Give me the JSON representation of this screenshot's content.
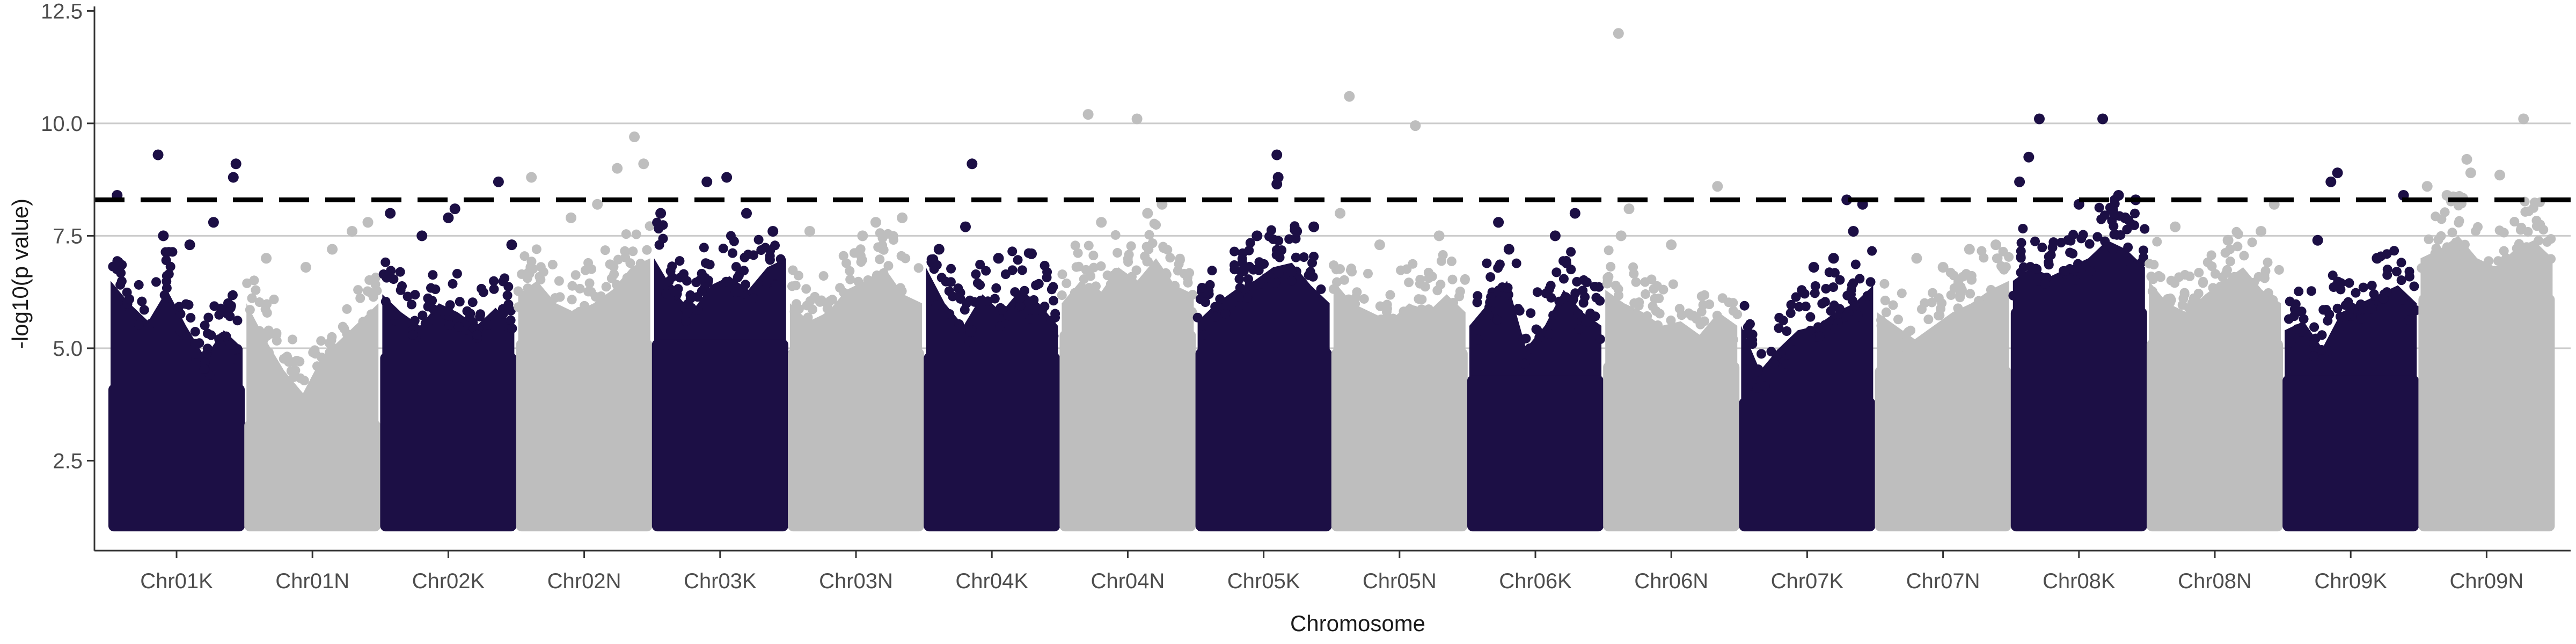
{
  "chart_data": {
    "type": "scatter",
    "subtype": "manhattan",
    "xlabel": "Chromosome",
    "ylabel": "-log10(p value)",
    "ylim": [
      0.5,
      12.6
    ],
    "yticks": [
      "2.5",
      "5.0",
      "7.5",
      "10.0",
      "12.5"
    ],
    "y_gridlines": [
      5.0,
      7.5,
      10.0
    ],
    "threshold": 8.3,
    "threshold_style": "dashed",
    "colors": {
      "dark": "#1c0f45",
      "light": "#bebebe",
      "threshold": "#000000",
      "grid": "#cccccc"
    },
    "point_floor": 1.0,
    "categories": [
      {
        "name": "Chr01K",
        "color": "dark",
        "band_top": [
          6.5,
          6.0,
          5.6,
          6.3,
          5.5,
          4.8,
          5.4,
          5.0
        ],
        "outliers": [
          [
            0.05,
            8.4
          ],
          [
            0.36,
            9.3
          ],
          [
            0.95,
            9.1
          ],
          [
            0.93,
            8.8
          ],
          [
            0.78,
            7.8
          ],
          [
            0.6,
            7.3
          ],
          [
            0.4,
            7.5
          ]
        ]
      },
      {
        "name": "Chr01N",
        "color": "light",
        "band_top": [
          6.0,
          5.2,
          4.5,
          4.0,
          4.8,
          5.2,
          5.6,
          6.0
        ],
        "outliers": [
          [
            0.15,
            7.0
          ],
          [
            0.8,
            7.6
          ],
          [
            0.92,
            7.8
          ],
          [
            0.65,
            7.2
          ],
          [
            0.45,
            6.8
          ]
        ]
      },
      {
        "name": "Chr02K",
        "color": "dark",
        "band_top": [
          6.2,
          5.8,
          5.5,
          6.0,
          5.8,
          5.5,
          5.9,
          5.5
        ],
        "outliers": [
          [
            0.06,
            8.0
          ],
          [
            0.5,
            7.9
          ],
          [
            0.55,
            8.1
          ],
          [
            0.88,
            8.7
          ],
          [
            0.98,
            7.3
          ],
          [
            0.3,
            7.5
          ]
        ]
      },
      {
        "name": "Chr02N",
        "color": "light",
        "band_top": [
          6.2,
          6.5,
          6.0,
          5.8,
          6.0,
          6.3,
          6.8,
          7.0
        ],
        "outliers": [
          [
            0.1,
            8.8
          ],
          [
            0.75,
            9.0
          ],
          [
            0.88,
            9.7
          ],
          [
            0.95,
            9.1
          ],
          [
            0.6,
            8.2
          ],
          [
            0.4,
            7.9
          ]
        ]
      },
      {
        "name": "Chr03K",
        "color": "dark",
        "band_top": [
          7.0,
          6.3,
          5.8,
          6.4,
          6.6,
          6.3,
          6.8,
          7.0
        ],
        "outliers": [
          [
            0.05,
            8.0
          ],
          [
            0.4,
            8.7
          ],
          [
            0.55,
            8.8
          ],
          [
            0.7,
            8.0
          ],
          [
            0.9,
            7.6
          ]
        ]
      },
      {
        "name": "Chr03N",
        "color": "light",
        "band_top": [
          6.0,
          5.6,
          5.8,
          6.3,
          6.5,
          6.8,
          6.2,
          6.0
        ],
        "outliers": [
          [
            0.15,
            7.6
          ],
          [
            0.55,
            7.5
          ],
          [
            0.85,
            7.9
          ],
          [
            0.65,
            7.8
          ]
        ]
      },
      {
        "name": "Chr04K",
        "color": "dark",
        "band_top": [
          6.8,
          6.0,
          5.5,
          6.2,
          5.8,
          6.3,
          6.0,
          5.5
        ],
        "outliers": [
          [
            0.35,
            9.1
          ],
          [
            0.3,
            7.7
          ],
          [
            0.8,
            7.1
          ],
          [
            0.55,
            7.0
          ],
          [
            0.1,
            7.2
          ]
        ]
      },
      {
        "name": "Chr04N",
        "color": "light",
        "band_top": [
          6.0,
          6.5,
          6.2,
          6.8,
          6.5,
          7.0,
          6.4,
          6.2
        ],
        "outliers": [
          [
            0.2,
            10.2
          ],
          [
            0.57,
            10.1
          ],
          [
            0.76,
            8.2
          ],
          [
            0.65,
            8.0
          ],
          [
            0.3,
            7.8
          ]
        ]
      },
      {
        "name": "Chr05K",
        "color": "dark",
        "band_top": [
          5.6,
          6.0,
          6.3,
          6.5,
          6.8,
          6.9,
          6.4,
          6.0
        ],
        "outliers": [
          [
            0.6,
            9.3
          ],
          [
            0.61,
            8.8
          ],
          [
            0.6,
            8.65
          ],
          [
            0.88,
            7.7
          ],
          [
            0.75,
            7.6
          ],
          [
            0.45,
            7.5
          ]
        ]
      },
      {
        "name": "Chr05N",
        "color": "light",
        "band_top": [
          6.5,
          6.0,
          5.8,
          5.6,
          6.0,
          5.8,
          6.2,
          5.8
        ],
        "outliers": [
          [
            0.12,
            10.6
          ],
          [
            0.62,
            9.95
          ],
          [
            0.05,
            8.0
          ],
          [
            0.8,
            7.5
          ],
          [
            0.35,
            7.3
          ]
        ]
      },
      {
        "name": "Chr06K",
        "color": "dark",
        "band_top": [
          5.5,
          6.0,
          6.5,
          5.0,
          5.5,
          6.3,
          5.8,
          5.5
        ],
        "outliers": [
          [
            0.22,
            7.8
          ],
          [
            0.65,
            7.5
          ],
          [
            0.8,
            8.0
          ],
          [
            0.3,
            7.2
          ]
        ]
      },
      {
        "name": "Chr06N",
        "color": "light",
        "band_top": [
          6.3,
          6.0,
          5.8,
          5.5,
          5.6,
          5.3,
          5.8,
          5.5
        ],
        "outliers": [
          [
            0.1,
            12.0
          ],
          [
            0.18,
            8.1
          ],
          [
            0.85,
            8.6
          ],
          [
            0.5,
            7.3
          ],
          [
            0.12,
            7.5
          ]
        ]
      },
      {
        "name": "Chr07K",
        "color": "dark",
        "band_top": [
          5.5,
          4.5,
          5.0,
          5.4,
          5.5,
          5.8,
          6.0,
          6.4
        ],
        "outliers": [
          [
            0.8,
            8.3
          ],
          [
            0.92,
            8.2
          ],
          [
            0.7,
            7.0
          ],
          [
            0.85,
            7.6
          ],
          [
            0.55,
            6.8
          ]
        ]
      },
      {
        "name": "Chr07N",
        "color": "light",
        "band_top": [
          5.8,
          5.5,
          5.2,
          5.5,
          5.8,
          6.0,
          6.3,
          6.5
        ],
        "outliers": [
          [
            0.3,
            7.0
          ],
          [
            0.7,
            7.2
          ],
          [
            0.9,
            7.3
          ],
          [
            0.5,
            6.8
          ]
        ]
      },
      {
        "name": "Chr08K",
        "color": "dark",
        "band_top": [
          6.5,
          6.8,
          6.6,
          6.8,
          7.0,
          7.4,
          7.2,
          6.8
        ],
        "outliers": [
          [
            0.05,
            8.7
          ],
          [
            0.12,
            9.25
          ],
          [
            0.2,
            10.1
          ],
          [
            0.68,
            10.1
          ],
          [
            0.8,
            8.4
          ],
          [
            0.93,
            8.3
          ],
          [
            0.5,
            8.2
          ],
          [
            0.85,
            7.9
          ]
        ]
      },
      {
        "name": "Chr08N",
        "color": "light",
        "band_top": [
          6.5,
          6.0,
          5.8,
          6.2,
          6.5,
          6.8,
          6.3,
          6.0
        ],
        "outliers": [
          [
            0.2,
            7.7
          ],
          [
            0.6,
            7.4
          ],
          [
            0.95,
            8.2
          ],
          [
            0.85,
            7.6
          ]
        ]
      },
      {
        "name": "Chr09K",
        "color": "dark",
        "band_top": [
          5.4,
          5.6,
          5.0,
          5.8,
          6.0,
          6.2,
          6.4,
          6.0
        ],
        "outliers": [
          [
            0.35,
            8.7
          ],
          [
            0.4,
            8.9
          ],
          [
            0.9,
            8.4
          ],
          [
            0.25,
            7.4
          ],
          [
            0.7,
            7.0
          ]
        ]
      },
      {
        "name": "Chr09N",
        "color": "light",
        "band_top": [
          7.0,
          7.2,
          7.5,
          7.0,
          6.8,
          7.2,
          7.4,
          7.0
        ],
        "outliers": [
          [
            0.05,
            8.6
          ],
          [
            0.35,
            9.2
          ],
          [
            0.38,
            8.9
          ],
          [
            0.6,
            8.85
          ],
          [
            0.78,
            10.1
          ],
          [
            0.2,
            8.4
          ]
        ]
      }
    ]
  }
}
